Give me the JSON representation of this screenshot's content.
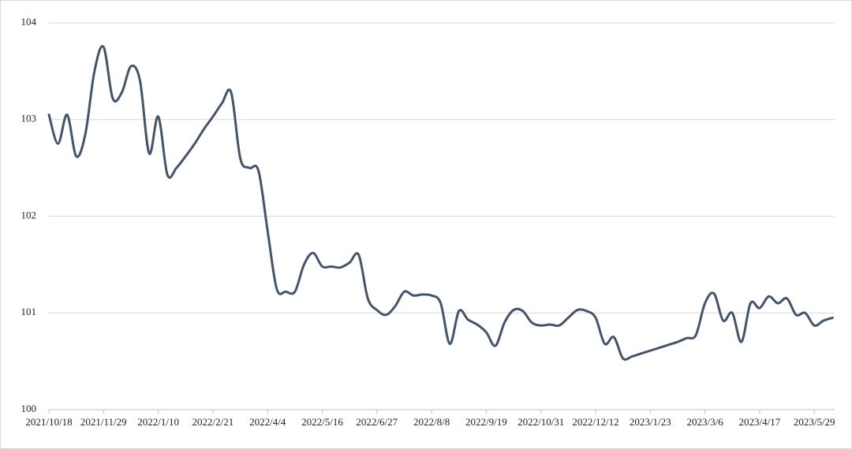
{
  "chart_data": {
    "type": "line",
    "categories": [
      "2021/10/18",
      null,
      null,
      null,
      null,
      null,
      "2021/11/29",
      null,
      null,
      null,
      null,
      null,
      "2022/1/10",
      null,
      null,
      null,
      null,
      null,
      "2022/2/21",
      null,
      null,
      null,
      null,
      null,
      "2022/4/4",
      null,
      null,
      null,
      null,
      null,
      "2022/5/16",
      null,
      null,
      null,
      null,
      null,
      "2022/6/27",
      null,
      null,
      null,
      null,
      null,
      "2022/8/8",
      null,
      null,
      null,
      null,
      null,
      "2022/9/19",
      null,
      null,
      null,
      null,
      null,
      "2022/10/31",
      null,
      null,
      null,
      null,
      null,
      "2022/12/12",
      null,
      null,
      null,
      null,
      null,
      "2023/1/23",
      null,
      null,
      null,
      null,
      null,
      "2023/3/6",
      null,
      null,
      null,
      null,
      null,
      "2023/4/17",
      null,
      null,
      null,
      null,
      null,
      "2023/5/29",
      null,
      null
    ],
    "values": [
      103.05,
      102.75,
      103.05,
      102.62,
      102.85,
      103.5,
      103.75,
      103.22,
      103.28,
      103.55,
      103.4,
      102.65,
      103.03,
      102.43,
      102.5,
      102.62,
      102.75,
      102.9,
      103.03,
      103.17,
      103.28,
      102.6,
      102.5,
      102.47,
      101.85,
      101.25,
      101.22,
      101.22,
      101.5,
      101.62,
      101.48,
      101.48,
      101.47,
      101.52,
      101.6,
      101.15,
      101.03,
      100.98,
      101.07,
      101.22,
      101.18,
      101.19,
      101.18,
      101.1,
      100.68,
      101.02,
      100.93,
      100.88,
      100.8,
      100.66,
      100.9,
      101.03,
      101.02,
      100.9,
      100.87,
      100.88,
      100.87,
      100.95,
      101.03,
      101.02,
      100.95,
      100.68,
      100.75,
      100.53,
      100.55,
      100.58,
      100.61,
      100.64,
      100.67,
      100.7,
      100.74,
      100.77,
      101.1,
      101.2,
      100.92,
      101.0,
      100.7,
      101.1,
      101.05,
      101.17,
      101.1,
      101.15,
      100.98,
      101.0,
      100.87,
      100.92,
      100.95
    ],
    "color": "#44546a",
    "ylim": [
      100,
      104
    ],
    "yticks": [
      100,
      101,
      102,
      103,
      104
    ],
    "grid": true
  }
}
